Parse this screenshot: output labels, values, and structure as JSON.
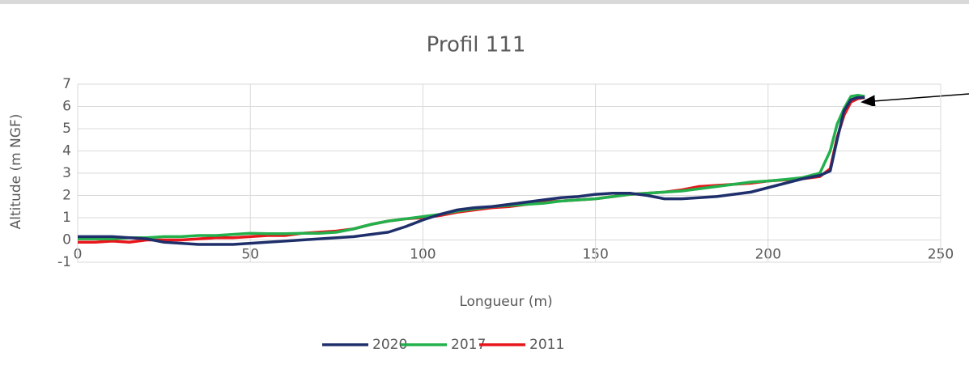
{
  "chart_data": {
    "type": "line",
    "title": "Profil 111",
    "xlabel": "Longueur (m)",
    "ylabel": "Altitude (m NGF)",
    "x": [
      0,
      5,
      10,
      15,
      20,
      25,
      30,
      35,
      40,
      45,
      50,
      55,
      60,
      65,
      70,
      75,
      80,
      85,
      90,
      95,
      100,
      105,
      110,
      115,
      120,
      125,
      130,
      135,
      140,
      145,
      150,
      155,
      160,
      165,
      170,
      175,
      180,
      185,
      190,
      195,
      200,
      205,
      210,
      215,
      218,
      220,
      222,
      224,
      226,
      228
    ],
    "series": [
      {
        "name": "2020",
        "color": "#1f2f6b",
        "values": [
          0.15,
          0.15,
          0.15,
          0.1,
          0.05,
          -0.1,
          -0.15,
          -0.2,
          -0.2,
          -0.2,
          -0.15,
          -0.1,
          -0.05,
          0,
          0.05,
          0.1,
          0.15,
          0.25,
          0.35,
          0.6,
          0.9,
          1.15,
          1.35,
          1.45,
          1.5,
          1.6,
          1.7,
          1.8,
          1.9,
          1.95,
          2.05,
          2.1,
          2.1,
          2.0,
          1.85,
          1.85,
          1.9,
          1.95,
          2.05,
          2.15,
          2.35,
          2.55,
          2.75,
          2.9,
          3.1,
          4.5,
          5.8,
          6.3,
          6.4,
          6.4
        ]
      },
      {
        "name": "2017",
        "color": "#22b14c",
        "values": [
          0.05,
          0.05,
          0.05,
          0.1,
          0.1,
          0.15,
          0.15,
          0.2,
          0.2,
          0.25,
          0.3,
          0.28,
          0.28,
          0.3,
          0.3,
          0.35,
          0.5,
          0.7,
          0.85,
          0.95,
          1.05,
          1.15,
          1.3,
          1.4,
          1.5,
          1.55,
          1.6,
          1.65,
          1.75,
          1.8,
          1.85,
          1.95,
          2.05,
          2.1,
          2.15,
          2.2,
          2.3,
          2.4,
          2.5,
          2.6,
          2.65,
          2.72,
          2.8,
          3.0,
          4.0,
          5.2,
          5.9,
          6.45,
          6.5,
          6.45
        ]
      },
      {
        "name": "2011",
        "color": "#e8161b",
        "values": [
          -0.1,
          -0.1,
          -0.05,
          -0.1,
          0,
          0,
          0,
          0.05,
          0.1,
          0.1,
          0.15,
          0.2,
          0.2,
          0.3,
          0.35,
          0.4,
          0.5,
          0.7,
          0.85,
          0.95,
          1.0,
          1.1,
          1.25,
          1.35,
          1.45,
          1.5,
          1.6,
          1.7,
          1.75,
          1.8,
          1.85,
          1.95,
          2.05,
          2.1,
          2.15,
          2.25,
          2.4,
          2.45,
          2.5,
          2.55,
          2.65,
          2.7,
          2.75,
          2.85,
          3.2,
          4.6,
          5.6,
          6.2,
          6.35,
          6.4
        ]
      }
    ],
    "xlim": [
      0,
      250
    ],
    "xticks": [
      0,
      50,
      100,
      150,
      200,
      250
    ],
    "ylim": [
      -1,
      7
    ],
    "yticks": [
      -1,
      0,
      1,
      2,
      3,
      4,
      5,
      6,
      7
    ],
    "grid": true,
    "legend": "bottom"
  }
}
